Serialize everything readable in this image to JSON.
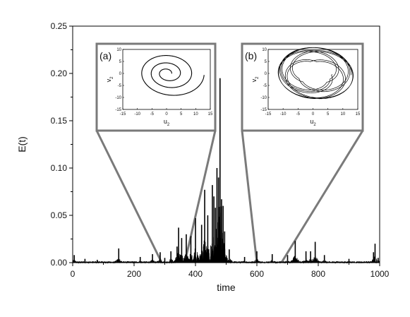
{
  "chart_data": {
    "type": "line",
    "xlabel": "time",
    "ylabel": "E(t)",
    "xlim": [
      0,
      1000
    ],
    "ylim": [
      0,
      0.25
    ],
    "x_ticks": [
      0,
      200,
      400,
      600,
      800,
      1000
    ],
    "x_tick_labels": [
      "0",
      "200",
      "400",
      "600",
      "800",
      "1000"
    ],
    "y_ticks": [
      0,
      0.05,
      0.1,
      0.15,
      0.2,
      0.25
    ],
    "y_tick_labels": [
      "0.00",
      "0.05",
      "0.10",
      "0.15",
      "0.20",
      "0.25"
    ],
    "grid": false,
    "series": [
      {
        "color": "#000000",
        "style": "dense spiky trace",
        "spikes": [
          {
            "x": 5,
            "y": 0.008
          },
          {
            "x": 40,
            "y": 0.004
          },
          {
            "x": 80,
            "y": 0.003
          },
          {
            "x": 150,
            "y": 0.015
          },
          {
            "x": 220,
            "y": 0.006
          },
          {
            "x": 260,
            "y": 0.009
          },
          {
            "x": 285,
            "y": 0.011
          },
          {
            "x": 300,
            "y": 0.005
          },
          {
            "x": 320,
            "y": 0.012
          },
          {
            "x": 340,
            "y": 0.017
          },
          {
            "x": 345,
            "y": 0.037
          },
          {
            "x": 355,
            "y": 0.026
          },
          {
            "x": 370,
            "y": 0.03
          },
          {
            "x": 385,
            "y": 0.028
          },
          {
            "x": 400,
            "y": 0.047
          },
          {
            "x": 420,
            "y": 0.04
          },
          {
            "x": 430,
            "y": 0.077
          },
          {
            "x": 440,
            "y": 0.05
          },
          {
            "x": 455,
            "y": 0.082
          },
          {
            "x": 460,
            "y": 0.07
          },
          {
            "x": 465,
            "y": 0.058
          },
          {
            "x": 470,
            "y": 0.1
          },
          {
            "x": 475,
            "y": 0.09
          },
          {
            "x": 480,
            "y": 0.195
          },
          {
            "x": 485,
            "y": 0.067
          },
          {
            "x": 490,
            "y": 0.06
          },
          {
            "x": 495,
            "y": 0.033
          },
          {
            "x": 510,
            "y": 0.014
          },
          {
            "x": 560,
            "y": 0.006
          },
          {
            "x": 600,
            "y": 0.012
          },
          {
            "x": 650,
            "y": 0.009
          },
          {
            "x": 700,
            "y": 0.008
          },
          {
            "x": 725,
            "y": 0.023
          },
          {
            "x": 760,
            "y": 0.012
          },
          {
            "x": 775,
            "y": 0.012
          },
          {
            "x": 790,
            "y": 0.022
          },
          {
            "x": 820,
            "y": 0.008
          },
          {
            "x": 900,
            "y": 0.004
          },
          {
            "x": 980,
            "y": 0.011
          },
          {
            "x": 985,
            "y": 0.02
          },
          {
            "x": 995,
            "y": 0.005
          }
        ]
      }
    ],
    "zoom_ranges": [
      {
        "label": "(a)",
        "from": 290,
        "to": 365
      },
      {
        "label": "(b)",
        "from": 600,
        "to": 680
      }
    ],
    "insets": [
      {
        "label": "(a)",
        "type": "line",
        "xlabel": "u",
        "xlabel_subscript": "2",
        "ylabel": "v",
        "ylabel_subscript": "2",
        "xlim": [
          -15,
          15
        ],
        "ylim": [
          -15,
          10
        ],
        "x_tick_labels": [
          "-15",
          "-10",
          "-5",
          "0",
          "5",
          "10",
          "15"
        ],
        "y_tick_labels": [
          "10",
          "5",
          "0",
          "-5",
          "-10",
          "-15"
        ],
        "loops": 3
      },
      {
        "label": "(b)",
        "type": "line",
        "xlabel": "u",
        "xlabel_subscript": "2",
        "ylabel": "v",
        "ylabel_subscript": "2",
        "xlim": [
          -15,
          15
        ],
        "ylim": [
          -15,
          10
        ],
        "x_tick_labels": [
          "-15",
          "-10",
          "-5",
          "0",
          "5",
          "10",
          "15"
        ],
        "y_tick_labels": [
          "10",
          "5",
          "0",
          "-5",
          "-10",
          "-15"
        ],
        "loops": 9
      }
    ]
  }
}
